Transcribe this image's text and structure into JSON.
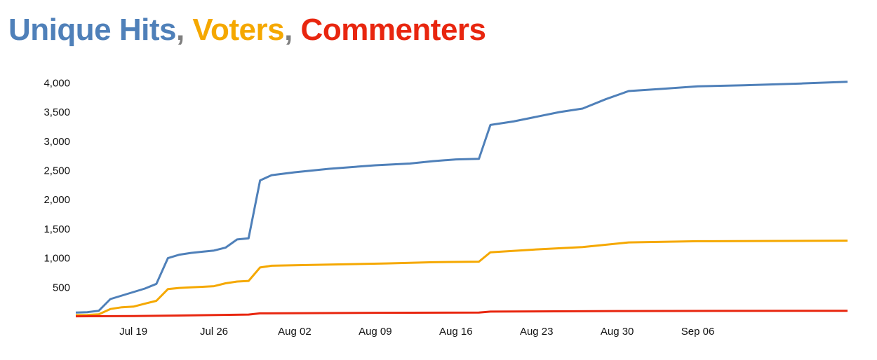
{
  "title": {
    "series": [
      {
        "label": "Unique Hits",
        "color": "#4f80b9"
      },
      {
        "label": "Voters",
        "color": "#f5a800"
      },
      {
        "label": "Commenters",
        "color": "#e8260f"
      }
    ],
    "separator": ", ",
    "separator_color": "#7f7f7f"
  },
  "chart_data": {
    "type": "line",
    "title": "Unique Hits, Voters, Commenters",
    "xlabel": "",
    "ylabel": "",
    "xlim": [
      "2015-07-14",
      "2015-09-19"
    ],
    "ylim": [
      0,
      4100
    ],
    "x_ticks": [
      "Jul 19",
      "Jul 26",
      "Aug 02",
      "Aug 09",
      "Aug 16",
      "Aug 23",
      "Aug 30",
      "Sep 06"
    ],
    "y_ticks": [
      "500",
      "1,000",
      "1,500",
      "2,000",
      "2,500",
      "3,000",
      "3,500",
      "4,000"
    ],
    "grid": false,
    "legend": "none",
    "series": [
      {
        "name": "Unique Hits",
        "color": "#4f80b9",
        "x": [
          "2015-07-14",
          "2015-07-15",
          "2015-07-16",
          "2015-07-17",
          "2015-07-18",
          "2015-07-19",
          "2015-07-20",
          "2015-07-21",
          "2015-07-22",
          "2015-07-23",
          "2015-07-24",
          "2015-07-25",
          "2015-07-26",
          "2015-07-27",
          "2015-07-28",
          "2015-07-29",
          "2015-07-30",
          "2015-07-31",
          "2015-08-02",
          "2015-08-05",
          "2015-08-09",
          "2015-08-12",
          "2015-08-14",
          "2015-08-16",
          "2015-08-18",
          "2015-08-19",
          "2015-08-21",
          "2015-08-23",
          "2015-08-25",
          "2015-08-27",
          "2015-08-29",
          "2015-08-31",
          "2015-09-03",
          "2015-09-06",
          "2015-09-10",
          "2015-09-15",
          "2015-09-19"
        ],
        "y": [
          70,
          75,
          100,
          300,
          360,
          420,
          480,
          560,
          1000,
          1060,
          1090,
          1110,
          1130,
          1180,
          1320,
          1340,
          2330,
          2420,
          2470,
          2530,
          2590,
          2620,
          2660,
          2690,
          2700,
          3280,
          3340,
          3420,
          3500,
          3560,
          3720,
          3860,
          3900,
          3940,
          3960,
          3990,
          4020
        ]
      },
      {
        "name": "Voters",
        "color": "#f5a800",
        "x": [
          "2015-07-14",
          "2015-07-15",
          "2015-07-16",
          "2015-07-17",
          "2015-07-18",
          "2015-07-19",
          "2015-07-20",
          "2015-07-21",
          "2015-07-22",
          "2015-07-23",
          "2015-07-24",
          "2015-07-25",
          "2015-07-26",
          "2015-07-27",
          "2015-07-28",
          "2015-07-29",
          "2015-07-30",
          "2015-07-31",
          "2015-08-05",
          "2015-08-10",
          "2015-08-14",
          "2015-08-18",
          "2015-08-19",
          "2015-08-23",
          "2015-08-27",
          "2015-08-31",
          "2015-09-06",
          "2015-09-19"
        ],
        "y": [
          25,
          28,
          40,
          130,
          160,
          170,
          220,
          270,
          470,
          490,
          500,
          510,
          520,
          570,
          600,
          610,
          840,
          870,
          890,
          910,
          930,
          940,
          1100,
          1150,
          1190,
          1270,
          1290,
          1300
        ]
      },
      {
        "name": "Commenters",
        "color": "#e8260f",
        "x": [
          "2015-07-14",
          "2015-07-19",
          "2015-07-24",
          "2015-07-29",
          "2015-07-30",
          "2015-08-09",
          "2015-08-18",
          "2015-08-19",
          "2015-08-30",
          "2015-09-19"
        ],
        "y": [
          5,
          8,
          20,
          35,
          55,
          65,
          70,
          85,
          95,
          100
        ]
      }
    ]
  }
}
